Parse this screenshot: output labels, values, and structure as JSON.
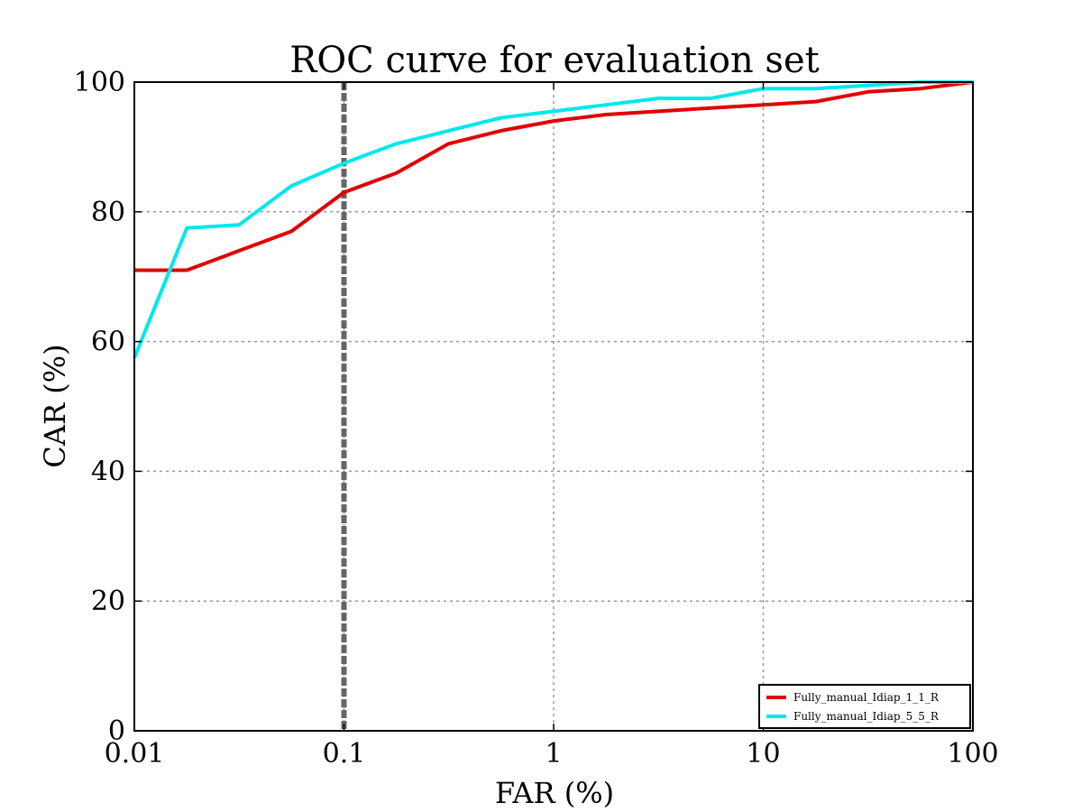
{
  "chart_data": {
    "type": "line",
    "title": "ROC curve for evaluation set",
    "xlabel": "FAR (%)",
    "ylabel": "CAR (%)",
    "x_scale": "log",
    "xlim": [
      0.01,
      100
    ],
    "ylim": [
      0,
      100
    ],
    "x_ticks": [
      "0.01",
      "0.1",
      "1",
      "10",
      "100"
    ],
    "y_ticks": [
      "0",
      "20",
      "40",
      "60",
      "80",
      "100"
    ],
    "grid": true,
    "legend_position": "bottom-right",
    "reference_line": {
      "x": 0.1,
      "color": "#666666",
      "style": "dashed"
    },
    "series": [
      {
        "name": "Fully_manual_Idiap_1_1_R",
        "color": "#e00000",
        "x": [
          0.01,
          0.0178,
          0.0316,
          0.0562,
          0.1,
          0.178,
          0.316,
          0.562,
          1,
          1.78,
          3.16,
          5.62,
          10,
          17.8,
          31.6,
          56.2,
          100
        ],
        "y": [
          71,
          71,
          74,
          77,
          83,
          86,
          90.5,
          92.5,
          94,
          95,
          95.5,
          96,
          96.5,
          97,
          98.5,
          99,
          100
        ]
      },
      {
        "name": "Fully_manual_Idiap_5_5_R",
        "color": "#00e8ee",
        "x": [
          0.01,
          0.0178,
          0.0316,
          0.0562,
          0.1,
          0.178,
          0.316,
          0.562,
          1,
          1.78,
          3.16,
          5.62,
          10,
          17.8,
          31.6,
          56.2,
          100
        ],
        "y": [
          57.5,
          77.5,
          78,
          84,
          87.5,
          90.5,
          92.5,
          94.5,
          95.5,
          96.5,
          97.5,
          97.5,
          99,
          99,
          99.5,
          100,
          100
        ]
      }
    ]
  }
}
